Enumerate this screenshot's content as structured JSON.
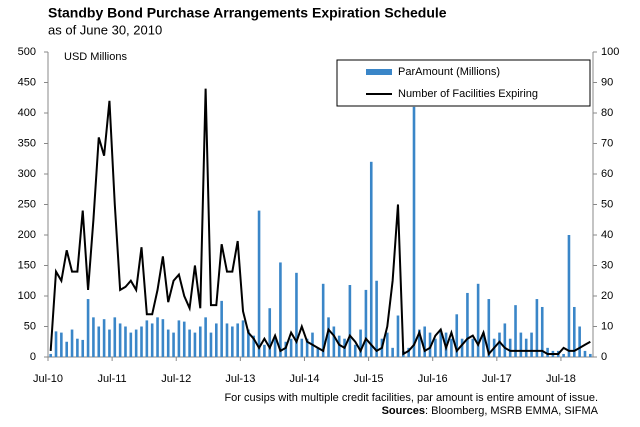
{
  "chart_data": {
    "type": "bar_line",
    "title": "Standby Bond Purchase Arrangements Expiration Schedule",
    "subtitle": "as of June 30, 2010",
    "y_label": "USD Millions",
    "footnote": "For cusips with multiple credit facilities, par amount is entire amount of issue.",
    "sources_label": "Sources",
    "sources_text": ": Bloomberg, MSRB EMMA,  SIFMA",
    "categories": [
      "Jul-10",
      null,
      null,
      null,
      null,
      null,
      null,
      null,
      null,
      null,
      null,
      null,
      "Jul-11",
      null,
      null,
      null,
      null,
      null,
      null,
      null,
      null,
      null,
      null,
      null,
      "Jul-12",
      null,
      null,
      null,
      null,
      null,
      null,
      null,
      null,
      null,
      null,
      null,
      "Jul-13",
      null,
      null,
      null,
      null,
      null,
      null,
      null,
      null,
      null,
      null,
      null,
      "Jul-14",
      null,
      null,
      null,
      null,
      null,
      null,
      null,
      null,
      null,
      null,
      null,
      "Jul-15",
      null,
      null,
      null,
      null,
      null,
      null,
      null,
      null,
      null,
      null,
      null,
      "Jul-16",
      null,
      null,
      null,
      null,
      null,
      null,
      null,
      null,
      null,
      null,
      null,
      "Jul-17",
      null,
      null,
      null,
      null,
      null,
      null,
      null,
      null,
      null,
      null,
      null,
      "Jul-18",
      null,
      null,
      null,
      null,
      null
    ],
    "series": [
      {
        "name": "ParAmount (Millions)",
        "color": "#3a86c8",
        "kind": "bar",
        "values": [
          5,
          42,
          40,
          25,
          45,
          30,
          28,
          95,
          65,
          50,
          62,
          45,
          65,
          55,
          50,
          40,
          45,
          50,
          60,
          55,
          65,
          62,
          45,
          40,
          60,
          58,
          45,
          40,
          50,
          65,
          40,
          55,
          92,
          55,
          50,
          55,
          60,
          45,
          35,
          240,
          20,
          80,
          30,
          155,
          25,
          30,
          138,
          30,
          30,
          40,
          15,
          120,
          65,
          50,
          35,
          30,
          118,
          20,
          45,
          110,
          320,
          125,
          30,
          40,
          15,
          68,
          10,
          15,
          410,
          45,
          50,
          40,
          30,
          45,
          40,
          30,
          70,
          30,
          105,
          30,
          120,
          40,
          95,
          30,
          40,
          55,
          30,
          85,
          40,
          30,
          40,
          95,
          82,
          15,
          10,
          10,
          5,
          200,
          82,
          50,
          10,
          5
        ]
      },
      {
        "name": "Number of Facilities Expiring",
        "color": "#000000",
        "kind": "line",
        "axis": "y2",
        "values": [
          2,
          28,
          25,
          35,
          28,
          28,
          48,
          22,
          45,
          72,
          66,
          84,
          50,
          22,
          23,
          25,
          22,
          36,
          14,
          14,
          22,
          33,
          18,
          25,
          27,
          20,
          16,
          30,
          16,
          88,
          17,
          17,
          37,
          28,
          28,
          38,
          15,
          8,
          6,
          3,
          6,
          3,
          7,
          2,
          3,
          8,
          5,
          10,
          5,
          4,
          3,
          2,
          9,
          7,
          4,
          3,
          7,
          5,
          2,
          6,
          4,
          2,
          3,
          10,
          25,
          50,
          1,
          2,
          4,
          8,
          2,
          3,
          7,
          9,
          3,
          8,
          2,
          4,
          6,
          7,
          4,
          8,
          1,
          3,
          5,
          3,
          2,
          2,
          2,
          2,
          2,
          2,
          2,
          1,
          1,
          1,
          3,
          2,
          2,
          3,
          4,
          5
        ]
      }
    ],
    "ylim": [
      0,
      500
    ],
    "yticks": [
      0,
      50,
      100,
      150,
      200,
      250,
      300,
      350,
      400,
      450,
      500
    ],
    "y2lim": [
      0,
      100
    ],
    "y2ticks": [
      0,
      10,
      20,
      30,
      40,
      50,
      60,
      70,
      80,
      90,
      100
    ],
    "legend": "upper right",
    "grid": false
  }
}
